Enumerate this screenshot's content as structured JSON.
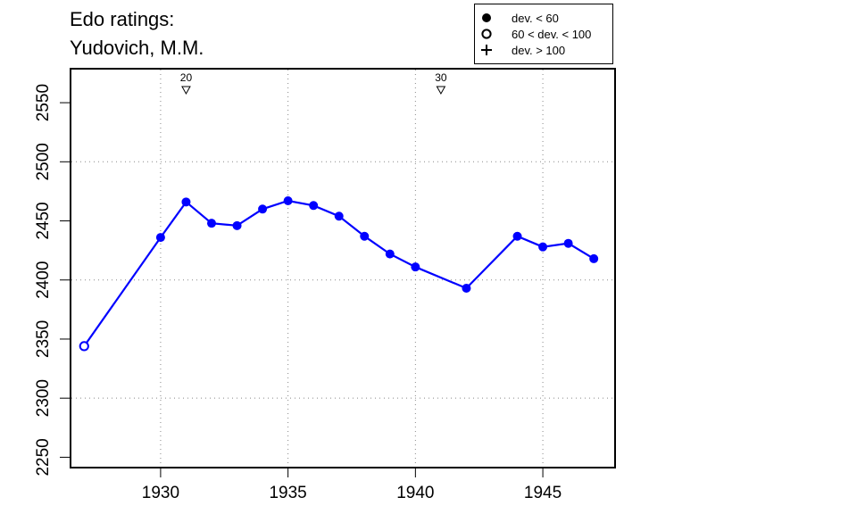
{
  "title": [
    "Edo ratings:",
    "Yudovich, M.M."
  ],
  "legend": {
    "entries": [
      {
        "symbol": "filled-circle-icon",
        "label": "dev. < 60"
      },
      {
        "symbol": "open-circle-icon",
        "label": "60 < dev. < 100"
      },
      {
        "symbol": "plus-icon",
        "label": "dev. > 100"
      }
    ]
  },
  "chart_data": {
    "type": "line",
    "title": "Edo ratings: Yudovich, M.M.",
    "xlabel": "",
    "ylabel": "",
    "xlim": [
      1926.5,
      1947.8
    ],
    "ylim": [
      2242,
      2578
    ],
    "x_ticks": [
      1930,
      1935,
      1940,
      1945
    ],
    "y_ticks": [
      2250,
      2300,
      2350,
      2400,
      2450,
      2500,
      2550
    ],
    "grid": true,
    "legend_position": "top-right",
    "line_color": "#0000ff",
    "series": [
      {
        "points": [
          {
            "x": 1927,
            "y": 2344,
            "dev": "60-100"
          },
          {
            "x": 1930,
            "y": 2436,
            "dev": "lt60"
          },
          {
            "x": 1931,
            "y": 2466,
            "dev": "lt60"
          },
          {
            "x": 1932,
            "y": 2448,
            "dev": "lt60"
          },
          {
            "x": 1933,
            "y": 2446,
            "dev": "lt60"
          },
          {
            "x": 1934,
            "y": 2460,
            "dev": "lt60"
          },
          {
            "x": 1935,
            "y": 2467,
            "dev": "lt60"
          },
          {
            "x": 1936,
            "y": 2463,
            "dev": "lt60"
          },
          {
            "x": 1937,
            "y": 2454,
            "dev": "lt60"
          },
          {
            "x": 1938,
            "y": 2437,
            "dev": "lt60"
          },
          {
            "x": 1939,
            "y": 2422,
            "dev": "lt60"
          },
          {
            "x": 1940,
            "y": 2411,
            "dev": "lt60"
          },
          {
            "x": 1942,
            "y": 2393,
            "dev": "lt60"
          },
          {
            "x": 1944,
            "y": 2437,
            "dev": "lt60"
          },
          {
            "x": 1945,
            "y": 2428,
            "dev": "lt60"
          },
          {
            "x": 1946,
            "y": 2431,
            "dev": "lt60"
          },
          {
            "x": 1947,
            "y": 2418,
            "dev": "lt60"
          }
        ]
      }
    ],
    "markers": [
      {
        "x": 1931,
        "label": "20"
      },
      {
        "x": 1941,
        "label": "30"
      }
    ]
  }
}
